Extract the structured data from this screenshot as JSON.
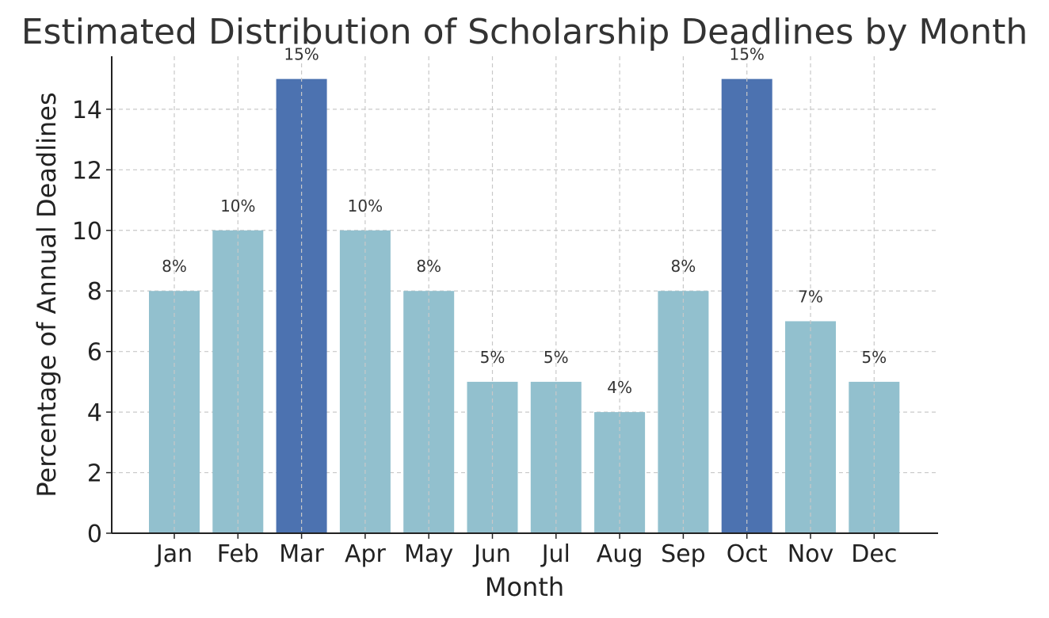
{
  "chart_data": {
    "type": "bar",
    "title": "Estimated Distribution of Scholarship Deadlines by Month",
    "xlabel": "Month",
    "ylabel": "Percentage of Annual Deadlines",
    "categories": [
      "Jan",
      "Feb",
      "Mar",
      "Apr",
      "May",
      "Jun",
      "Jul",
      "Aug",
      "Sep",
      "Oct",
      "Nov",
      "Dec"
    ],
    "values": [
      8,
      10,
      15,
      10,
      8,
      5,
      5,
      4,
      8,
      15,
      7,
      5
    ],
    "data_labels": [
      "8%",
      "10%",
      "15%",
      "10%",
      "8%",
      "5%",
      "5%",
      "4%",
      "8%",
      "15%",
      "7%",
      "5%"
    ],
    "highlighted": [
      "Mar",
      "Oct"
    ],
    "ylim": [
      0,
      15.75
    ],
    "yticks": [
      0,
      2,
      4,
      6,
      8,
      10,
      12,
      14
    ],
    "grid": true,
    "colors": {
      "bar": "#92c0ce",
      "highlight": "#4c72b0",
      "grid": "#c8c8c8",
      "axis": "#222222",
      "text": "#333333"
    }
  }
}
